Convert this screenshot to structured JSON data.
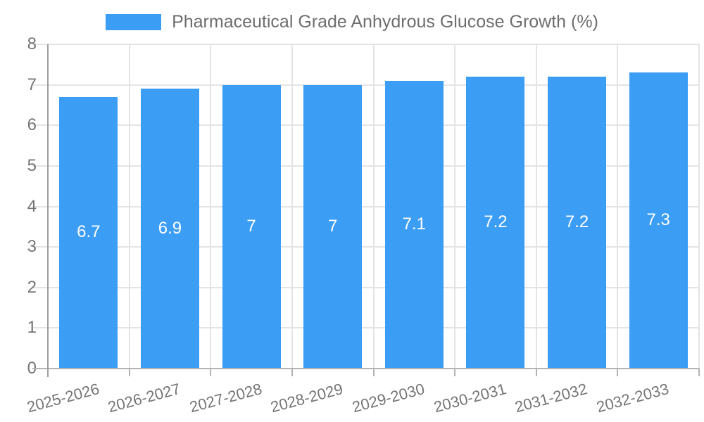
{
  "legend": {
    "label": "Pharmaceutical Grade Anhydrous Glucose Growth (%)"
  },
  "colors": {
    "bar": "#3b9df4",
    "grid": "#e4e4e4",
    "axis_line": "#9e9e9e",
    "baseline": "#b3b3b3",
    "tick_text": "#757575",
    "legend_text": "#6e6e6e",
    "bar_label_text": "#ffffff",
    "background": "#ffffff"
  },
  "chart_data": {
    "type": "bar",
    "title": "Pharmaceutical Grade Anhydrous Glucose Growth (%)",
    "series_name": "Pharmaceutical Grade Anhydrous Glucose Growth (%)",
    "categories": [
      "2025-2026",
      "2026-2027",
      "2027-2028",
      "2028-2029",
      "2029-2030",
      "2030-2031",
      "2031-2032",
      "2032-2033"
    ],
    "values": [
      6.7,
      6.9,
      7,
      7,
      7.1,
      7.2,
      7.2,
      7.3
    ],
    "bar_labels": [
      "6.7",
      "6.9",
      "7",
      "7",
      "7.1",
      "7.2",
      "7.2",
      "7.3"
    ],
    "xlabel": "",
    "ylabel": "",
    "y_ticks": [
      0,
      1,
      2,
      3,
      4,
      5,
      6,
      7,
      8
    ],
    "ylim": [
      0,
      8
    ],
    "grid": true,
    "legend_position": "top",
    "bar_label_position": "center"
  }
}
